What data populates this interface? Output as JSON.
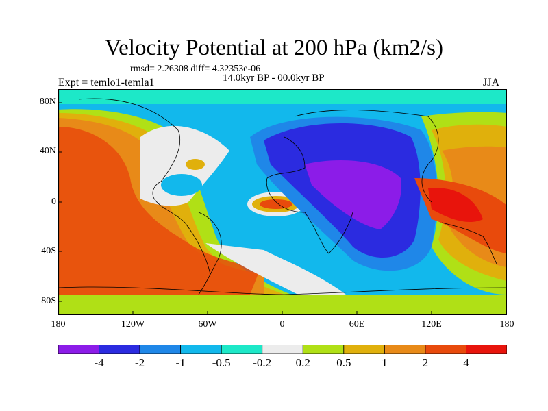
{
  "title": "Velocity Potential at 200 hPa (km2/s)",
  "stats": "rmsd= 2.26308 diff= 4.32353e-06",
  "period": "14.0kyr BP - 00.0kyr BP",
  "experiment": "Expt = temlo1-temla1",
  "season": "JJA",
  "lat_ticks": [
    "80N",
    "40N",
    "0",
    "40S",
    "80S"
  ],
  "lon_ticks": [
    "180",
    "120W",
    "60W",
    "0",
    "60E",
    "120E",
    "180"
  ],
  "colorbar": {
    "colors": [
      "#8c1ce8",
      "#2b2be0",
      "#1f87e8",
      "#12b8ec",
      "#1de8c8",
      "#ececec",
      "#b0e016",
      "#e0b00c",
      "#e88a18",
      "#e84a0c",
      "#e8140c"
    ],
    "labels": [
      "-4",
      "-2",
      "-1",
      "-0.5",
      "-0.2",
      "0.2",
      "0.5",
      "1",
      "2",
      "4"
    ]
  }
}
